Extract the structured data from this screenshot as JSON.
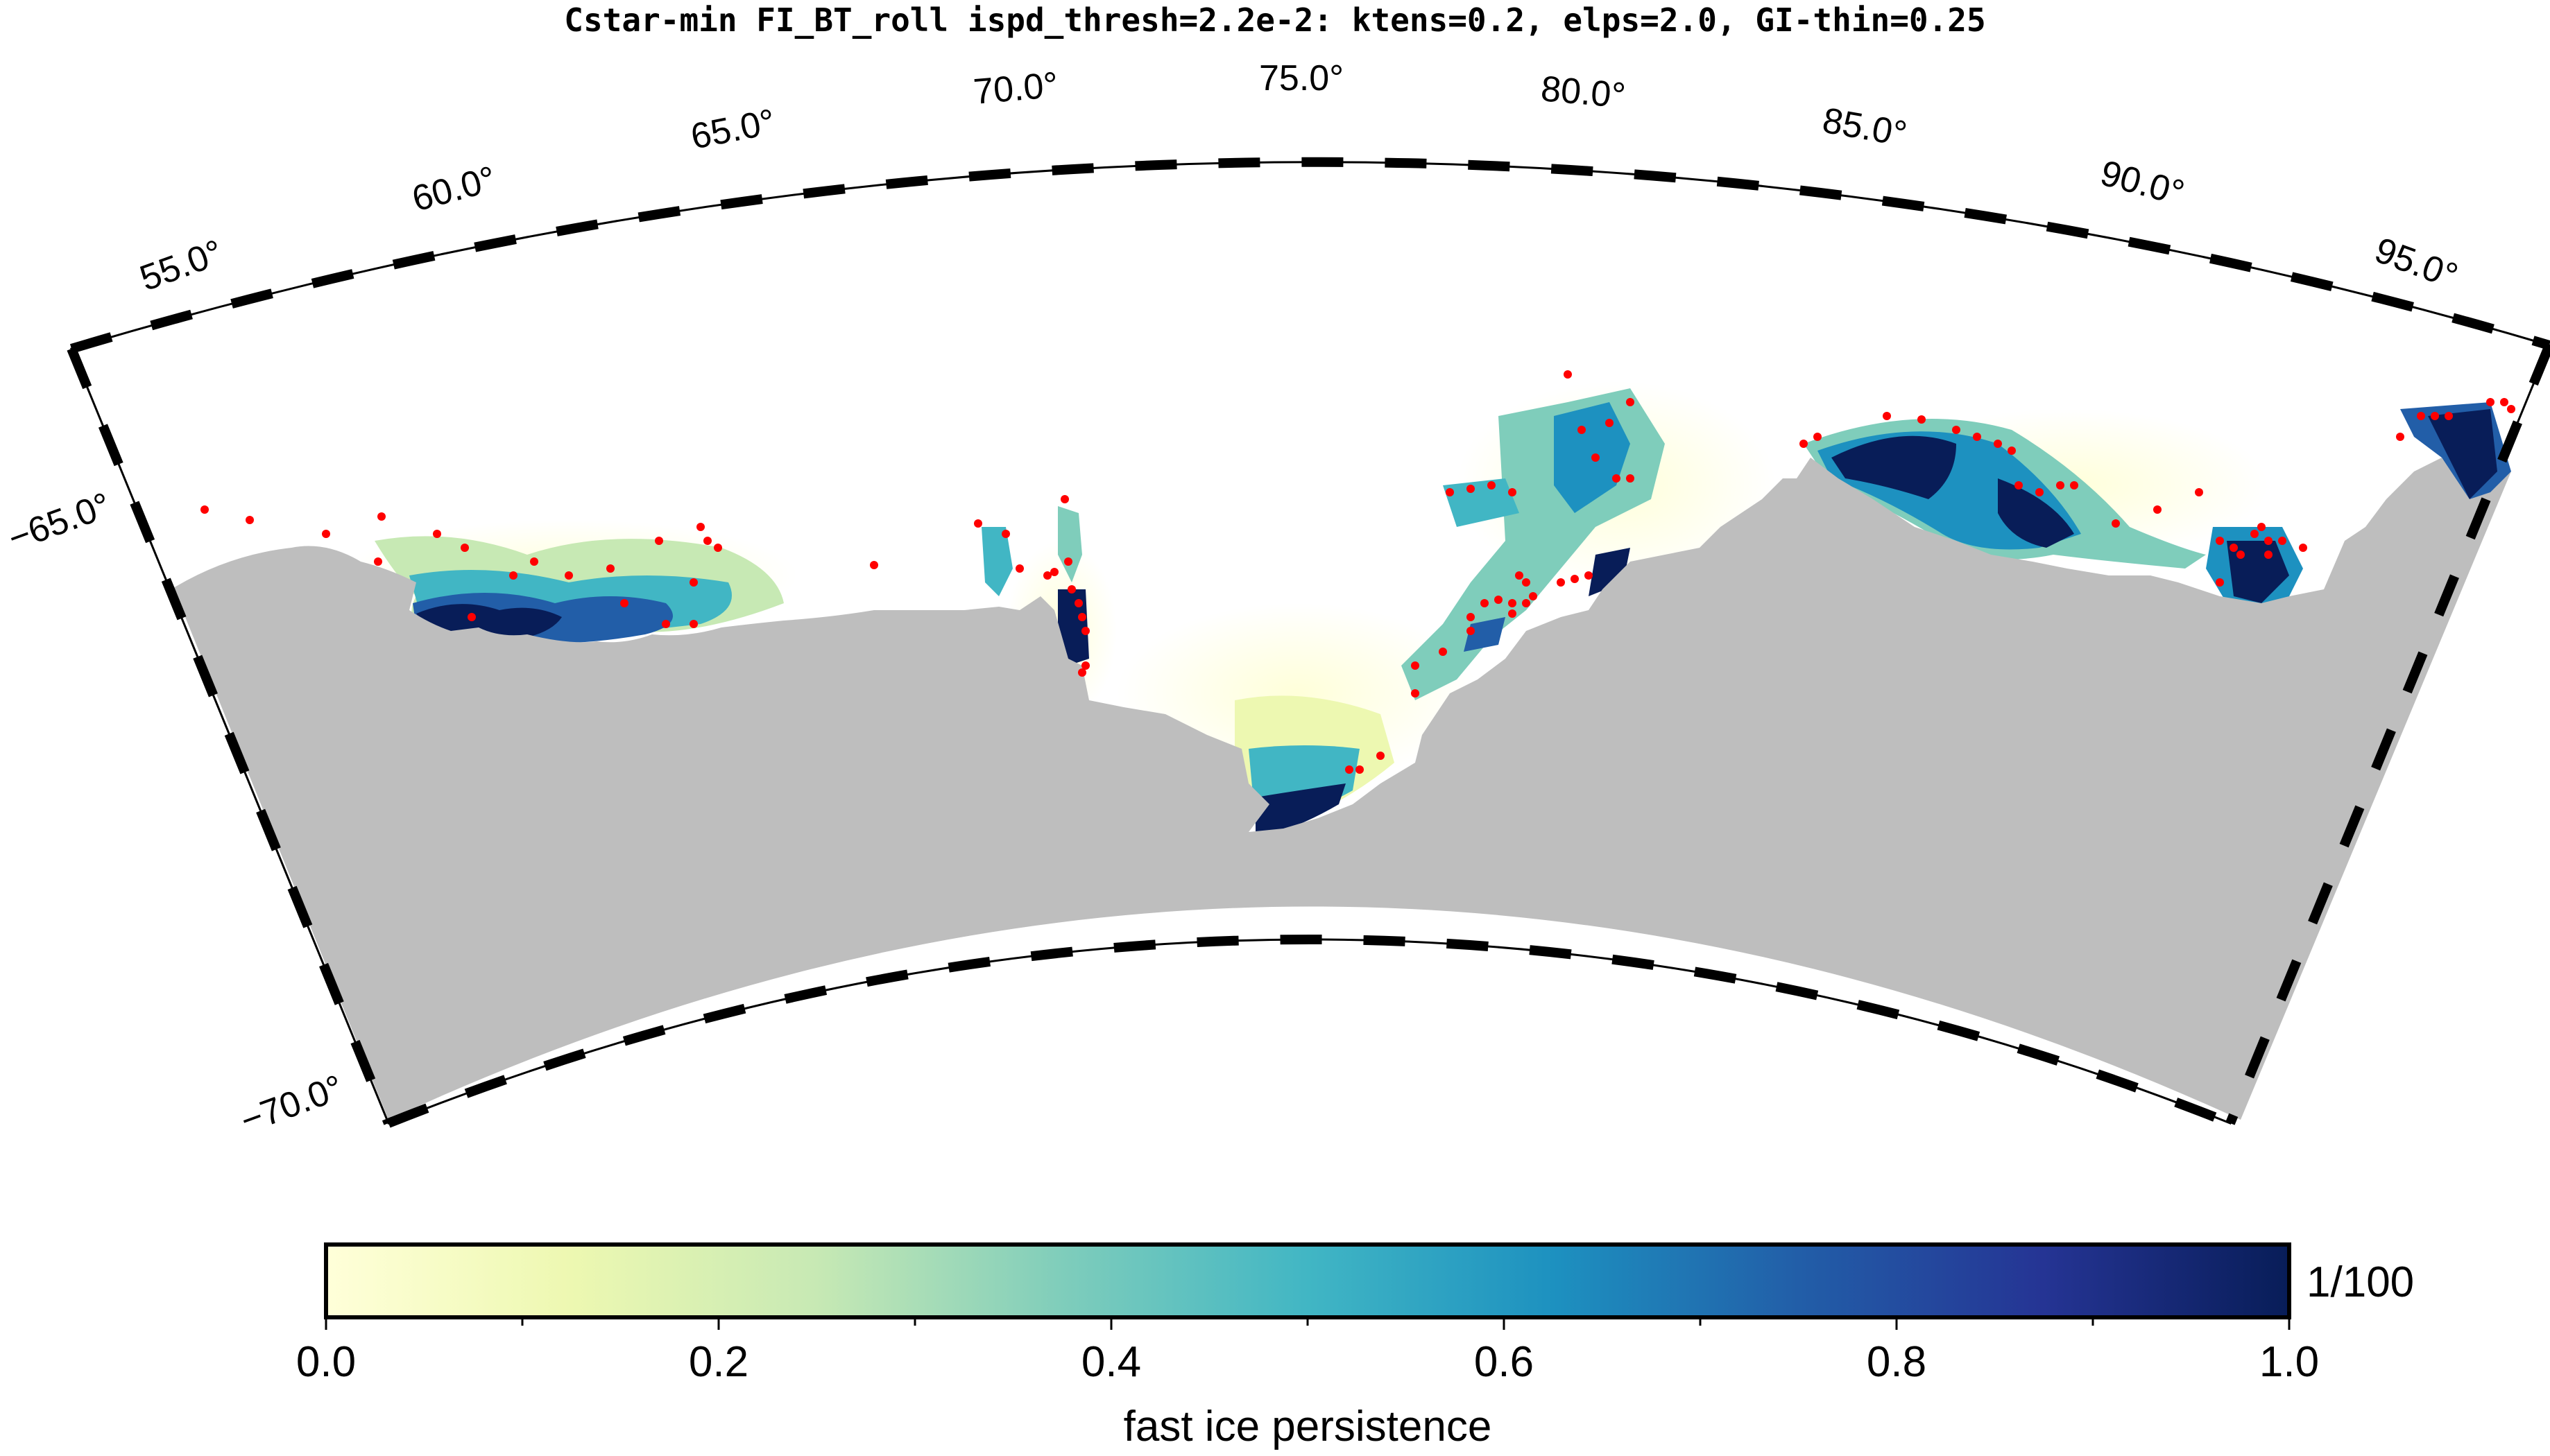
{
  "title": "Cstar-min FI_BT_roll ispd_thresh=2.2e-2: ktens=0.2, elps=2.0, GI-thin=0.25",
  "map": {
    "lon_labels": [
      "55.0°",
      "60.0°",
      "65.0°",
      "70.0°",
      "75.0°",
      "80.0°",
      "85.0°",
      "90.0°",
      "95.0°"
    ],
    "lat_labels": [
      "−65.0°",
      "−70.0°"
    ],
    "land_color": "#bebebe",
    "point_color": "#ff0000",
    "colors": {
      "low": "#ffffd9",
      "mid": "#41b6c4",
      "high": "#081d58"
    }
  },
  "colorbar": {
    "scale_label": "1/100",
    "ticks": [
      "0.0",
      "0.2",
      "0.4",
      "0.6",
      "0.8",
      "1.0"
    ],
    "label": "fast ice persistence",
    "stops": [
      "#ffffd9",
      "#edf8b1",
      "#c7e9b4",
      "#7fcdbb",
      "#41b6c4",
      "#1d91c0",
      "#225ea8",
      "#253494",
      "#081d58"
    ]
  }
}
